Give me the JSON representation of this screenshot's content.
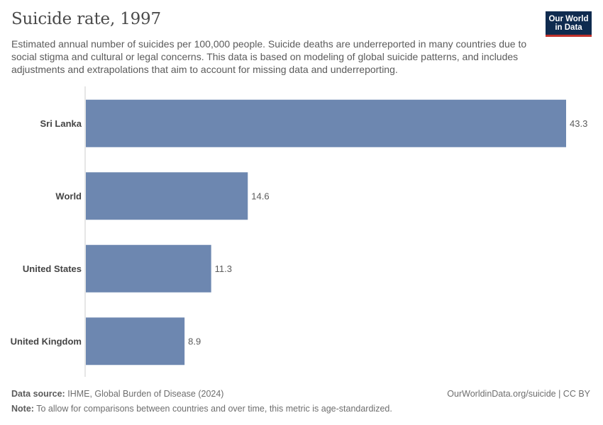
{
  "header": {
    "title": "Suicide rate, 1997",
    "subtitle": "Estimated annual number of suicides per 100,000 people. Suicide deaths are underreported in many countries due to social stigma and cultural or legal concerns. This data is based on modeling of global suicide patterns, and includes adjustments and extrapolations that aim to account for missing data and underreporting."
  },
  "logo": {
    "line1": "Our World",
    "line2": "in Data"
  },
  "footer": {
    "source_label": "Data source:",
    "source_text": "IHME, Global Burden of Disease (2024)",
    "credit": "OurWorldinData.org/suicide | CC BY",
    "note_label": "Note:",
    "note_text": "To allow for comparisons between countries and over time, this metric is age-standardized."
  },
  "colors": {
    "bar": "#6d87b0",
    "axis": "#cccccc",
    "label": "#444444",
    "value": "#5b5b5b"
  },
  "chart_data": {
    "type": "bar",
    "orientation": "horizontal",
    "title": "Suicide rate, 1997",
    "categories": [
      "Sri Lanka",
      "World",
      "United States",
      "United Kingdom"
    ],
    "values": [
      43.3,
      14.6,
      11.3,
      8.9
    ],
    "value_labels": [
      "43.3",
      "14.6",
      "11.3",
      "8.9"
    ],
    "xlim": [
      0,
      43.3
    ],
    "grid": false
  }
}
